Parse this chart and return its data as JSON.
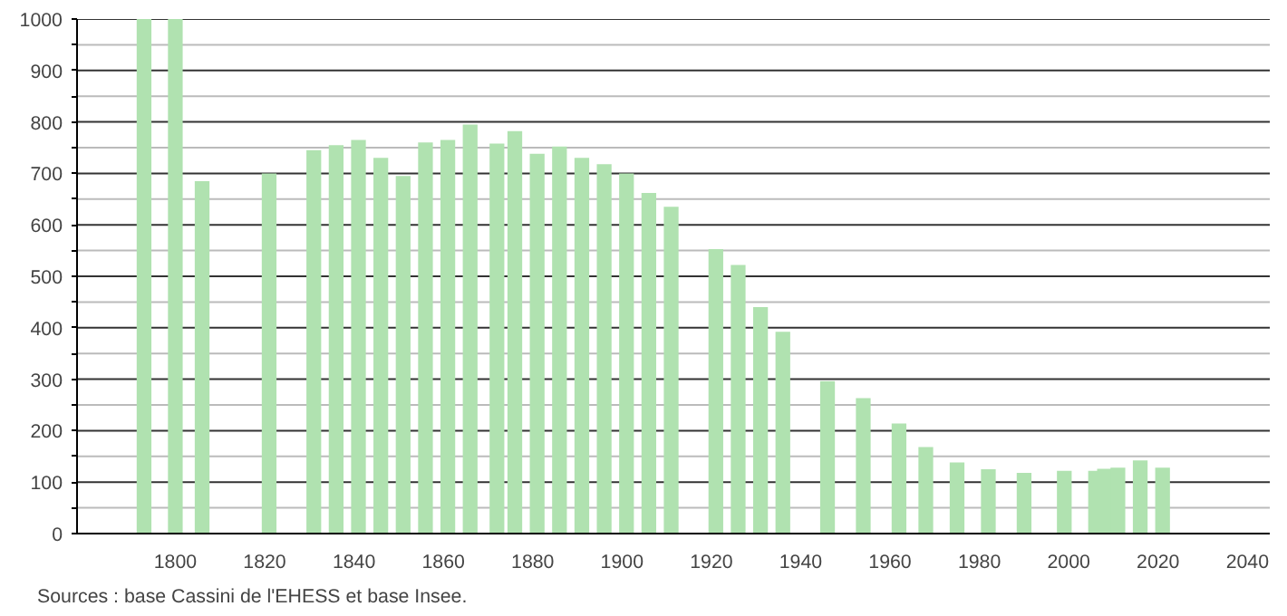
{
  "chart_data": {
    "type": "bar",
    "x": [
      1793,
      1800,
      1806,
      1821,
      1831,
      1836,
      1841,
      1846,
      1851,
      1856,
      1861,
      1866,
      1872,
      1876,
      1881,
      1886,
      1891,
      1896,
      1901,
      1906,
      1911,
      1921,
      1926,
      1931,
      1936,
      1946,
      1954,
      1962,
      1968,
      1975,
      1982,
      1990,
      1999,
      2006,
      2008,
      2011,
      2016,
      2021
    ],
    "values": [
      1000,
      1000,
      685,
      700,
      745,
      755,
      765,
      730,
      695,
      760,
      765,
      795,
      758,
      782,
      738,
      752,
      730,
      718,
      700,
      662,
      635,
      553,
      522,
      440,
      392,
      296,
      263,
      214,
      168,
      138,
      125,
      118,
      122,
      122,
      126,
      128,
      142,
      128
    ],
    "color": "#b0e2b0",
    "xlim": [
      1778,
      2045
    ],
    "xticks": [
      1800,
      1820,
      1840,
      1860,
      1880,
      1900,
      1920,
      1940,
      1960,
      1980,
      2000,
      2020,
      2040
    ],
    "ylim": [
      0,
      1000
    ],
    "yticks": [
      0,
      {
        "value": 50,
        "label": null
      },
      100,
      {
        "value": 150,
        "label": null
      },
      200,
      {
        "value": 250,
        "label": null
      },
      300,
      {
        "value": 350,
        "label": null
      },
      400,
      {
        "value": 450,
        "label": null
      },
      500,
      {
        "value": 550,
        "label": null
      },
      600,
      {
        "value": 650,
        "label": null
      },
      700,
      {
        "value": 750,
        "label": null
      },
      800,
      {
        "value": 850,
        "label": null
      },
      900,
      {
        "value": 950,
        "label": null
      },
      1000
    ],
    "grid": "y",
    "annotations": [
      "Sources : base Cassini de l'EHESS et base Insee."
    ]
  }
}
